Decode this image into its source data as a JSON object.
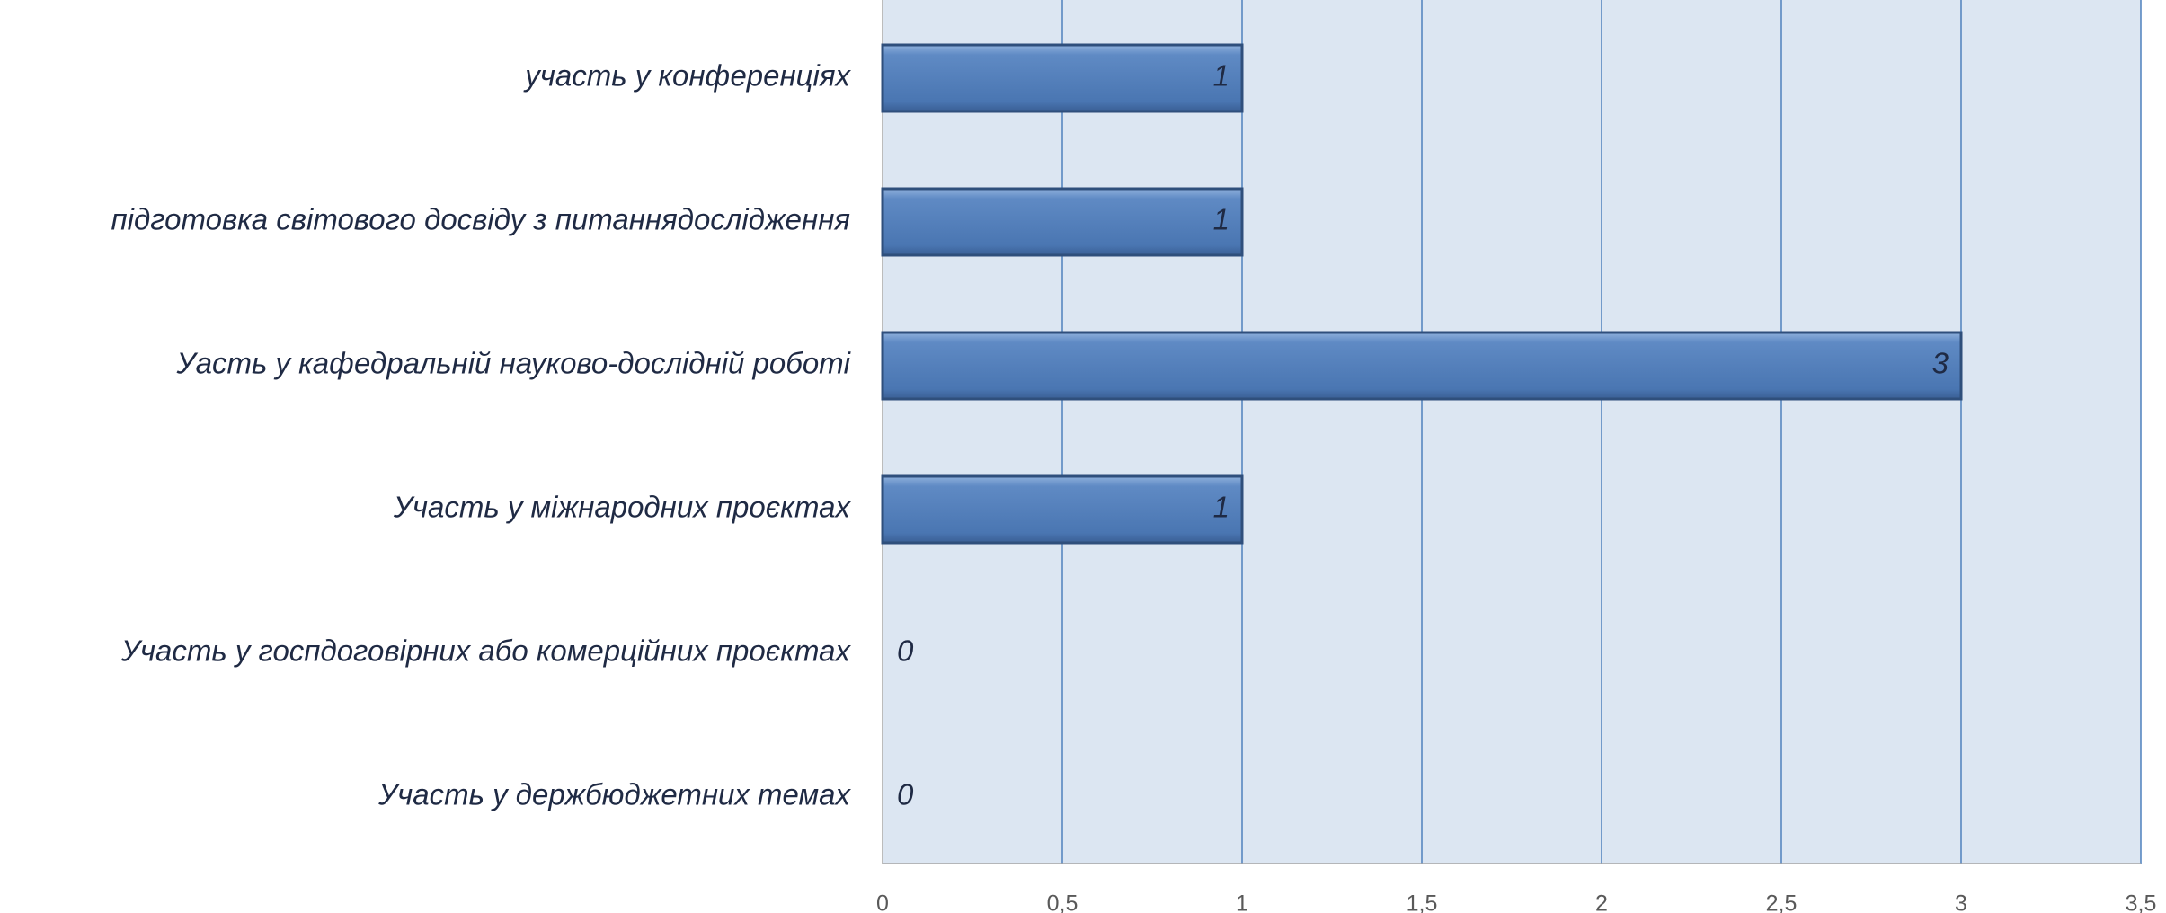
{
  "chart_data": {
    "type": "bar",
    "orientation": "horizontal",
    "categories": [
      "участь у конференціях",
      "підготовка світового досвіду з питаннядослідження",
      "Уасть у кафедральній науково-дослідній роботі",
      "Участь у міжнародних проєктах",
      "Участь у госпдоговірних або комерційних проєктах",
      "Участь у держбюджетних темах"
    ],
    "values": [
      1,
      1,
      3,
      1,
      0,
      0
    ],
    "color": "#4f81bd",
    "xlim": [
      0,
      3.5
    ],
    "xticks": [
      0,
      {
        "value": 0.5,
        "label": "0,5"
      },
      1,
      {
        "value": 1.5,
        "label": "1,5"
      },
      2,
      {
        "value": 2.5,
        "label": "2,5"
      },
      3,
      {
        "value": 3.5,
        "label": "3,5"
      }
    ],
    "grid": true
  }
}
